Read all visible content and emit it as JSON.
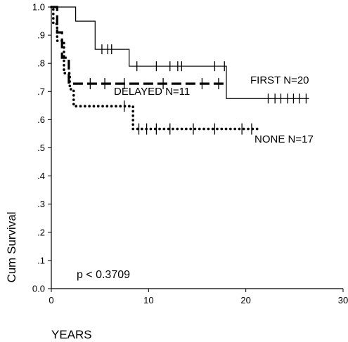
{
  "chart_data": {
    "type": "line",
    "step": true,
    "title": "",
    "xlabel": "YEARS",
    "ylabel": "Cum Survival",
    "xlim": [
      0,
      30
    ],
    "ylim": [
      0.0,
      1.0
    ],
    "x_ticks": [
      0,
      10,
      20,
      30
    ],
    "x_tick_labels": [
      "0",
      "10",
      "20",
      "30"
    ],
    "y_ticks": [
      0.0,
      0.1,
      0.2,
      0.3,
      0.4,
      0.5,
      0.6,
      0.7,
      0.8,
      0.9,
      1.0
    ],
    "y_tick_labels": [
      "0.0",
      ".1",
      ".2",
      ".3",
      ".4",
      ".5",
      ".6",
      ".7",
      ".8",
      ".9",
      "1.0"
    ],
    "grid": false,
    "legend": "inline labels",
    "annotations": [
      {
        "text": "p < 0.3709",
        "x": 2.6,
        "y": 0.05
      }
    ],
    "series": [
      {
        "name": "FIRST",
        "label": "FIRST   N=20",
        "style": "solid",
        "color": "#000000",
        "steps": [
          [
            0,
            1.0
          ],
          [
            2.5,
            1.0
          ],
          [
            2.5,
            0.95
          ],
          [
            4.5,
            0.95
          ],
          [
            4.5,
            0.85
          ],
          [
            8.0,
            0.85
          ],
          [
            8.0,
            0.79
          ],
          [
            18.0,
            0.79
          ],
          [
            18.0,
            0.675
          ],
          [
            26.5,
            0.675
          ]
        ],
        "censored": [
          {
            "x": 5.2,
            "y": 0.85
          },
          {
            "x": 5.8,
            "y": 0.85
          },
          {
            "x": 6.2,
            "y": 0.85
          },
          {
            "x": 8.8,
            "y": 0.79
          },
          {
            "x": 10.8,
            "y": 0.79
          },
          {
            "x": 12.2,
            "y": 0.79
          },
          {
            "x": 13.0,
            "y": 0.79
          },
          {
            "x": 13.4,
            "y": 0.79
          },
          {
            "x": 16.8,
            "y": 0.79
          },
          {
            "x": 17.8,
            "y": 0.79
          },
          {
            "x": 22.3,
            "y": 0.675
          },
          {
            "x": 23.0,
            "y": 0.675
          },
          {
            "x": 23.6,
            "y": 0.675
          },
          {
            "x": 24.3,
            "y": 0.675
          },
          {
            "x": 24.9,
            "y": 0.675
          },
          {
            "x": 25.5,
            "y": 0.675
          },
          {
            "x": 26.2,
            "y": 0.675
          }
        ]
      },
      {
        "name": "DELAYED",
        "label": "DELAYED   N=11",
        "style": "dashed",
        "color": "#000000",
        "steps": [
          [
            0,
            1.0
          ],
          [
            0.6,
            1.0
          ],
          [
            0.6,
            0.91
          ],
          [
            1.1,
            0.91
          ],
          [
            1.1,
            0.82
          ],
          [
            1.8,
            0.82
          ],
          [
            1.8,
            0.728
          ],
          [
            18.0,
            0.728
          ]
        ],
        "censored": [
          {
            "x": 4.0,
            "y": 0.728
          },
          {
            "x": 5.5,
            "y": 0.728
          },
          {
            "x": 7.5,
            "y": 0.728
          },
          {
            "x": 11.5,
            "y": 0.728
          },
          {
            "x": 15.5,
            "y": 0.728
          },
          {
            "x": 17.2,
            "y": 0.728
          }
        ]
      },
      {
        "name": "NONE",
        "label": "NONE   N=17",
        "style": "dotted",
        "color": "#000000",
        "steps": [
          [
            0,
            1.0
          ],
          [
            0.2,
            1.0
          ],
          [
            0.2,
            0.94
          ],
          [
            0.6,
            0.94
          ],
          [
            0.6,
            0.88
          ],
          [
            1.3,
            0.88
          ],
          [
            1.3,
            0.765
          ],
          [
            1.9,
            0.765
          ],
          [
            1.9,
            0.708
          ],
          [
            2.3,
            0.708
          ],
          [
            2.3,
            0.648
          ],
          [
            8.4,
            0.648
          ],
          [
            8.4,
            0.567
          ],
          [
            21.5,
            0.567
          ]
        ],
        "censored": [
          {
            "x": 7.5,
            "y": 0.648
          },
          {
            "x": 9.0,
            "y": 0.567
          },
          {
            "x": 9.8,
            "y": 0.567
          },
          {
            "x": 10.8,
            "y": 0.567
          },
          {
            "x": 12.2,
            "y": 0.567
          },
          {
            "x": 14.6,
            "y": 0.567
          },
          {
            "x": 16.8,
            "y": 0.567
          },
          {
            "x": 19.6,
            "y": 0.567
          },
          {
            "x": 20.6,
            "y": 0.567
          }
        ]
      }
    ]
  }
}
